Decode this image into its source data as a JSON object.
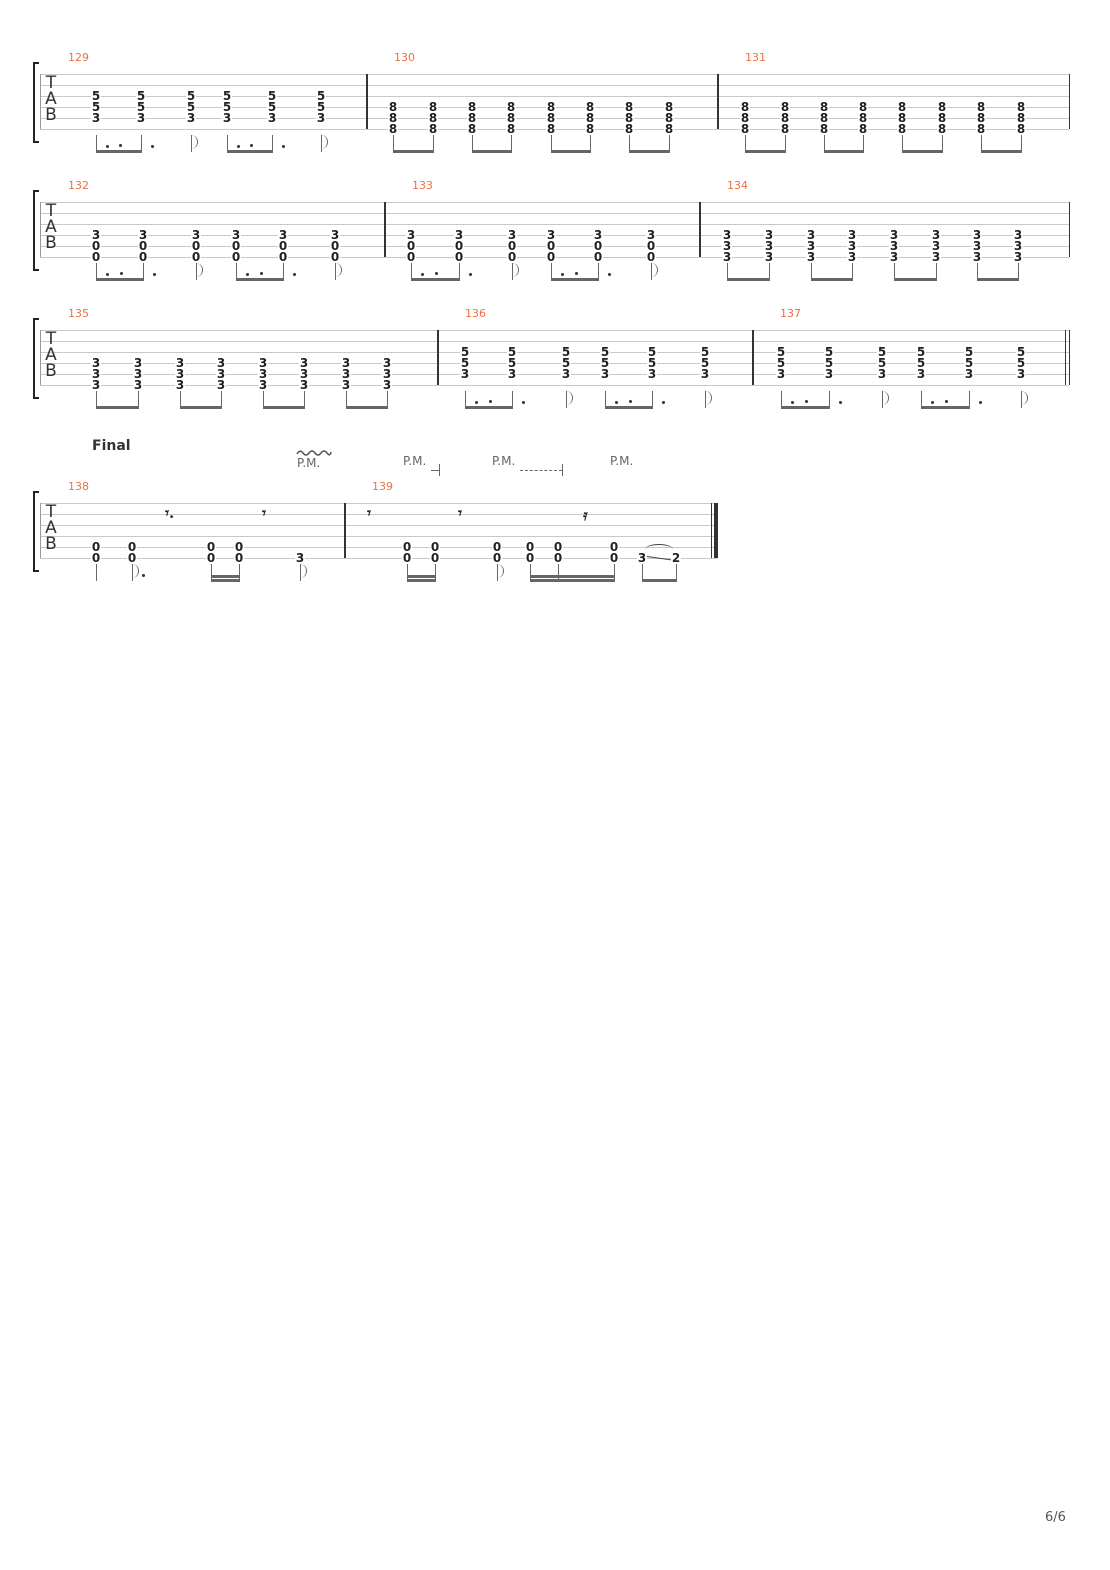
{
  "section_label": "Final",
  "page_number": "6/6",
  "tab_clef": [
    "T",
    "A",
    "B"
  ],
  "annotations": [
    {
      "text": "P.M.",
      "style": "vibrato"
    },
    {
      "text": "P.M.",
      "style": "short-end"
    },
    {
      "text": "P.M.",
      "style": "dashed-end"
    },
    {
      "text": "P.M.",
      "style": "plain"
    }
  ],
  "colors": {
    "measure_number": "#f07040",
    "staff_line": "#c8c8c8",
    "notes": "#222222"
  },
  "systems": [
    {
      "measures": [
        {
          "number": "129",
          "beats": [
            {
              "f": {
                "3": "5",
                "4": "5",
                "5": "3"
              },
              "dur": "8.",
              "beam": "a"
            },
            {
              "f": {
                "3": "5",
                "4": "5",
                "5": "3"
              },
              "dur": "8.",
              "beam": "a"
            },
            {
              "f": {
                "3": "5",
                "4": "5",
                "5": "3"
              },
              "dur": "8"
            },
            {
              "f": {
                "3": "5",
                "4": "5",
                "5": "3"
              },
              "dur": "8.",
              "beam": "b"
            },
            {
              "f": {
                "3": "5",
                "4": "5",
                "5": "3"
              },
              "dur": "8.",
              "beam": "b"
            },
            {
              "f": {
                "3": "5",
                "4": "5",
                "5": "3"
              },
              "dur": "8"
            }
          ]
        },
        {
          "number": "130",
          "beats": [
            {
              "f": {
                "4": "8",
                "5": "8",
                "6": "8"
              },
              "dur": "8",
              "beam": "a"
            },
            {
              "f": {
                "4": "8",
                "5": "8",
                "6": "8"
              },
              "dur": "8",
              "beam": "a"
            },
            {
              "f": {
                "4": "8",
                "5": "8",
                "6": "8"
              },
              "dur": "8",
              "beam": "b"
            },
            {
              "f": {
                "4": "8",
                "5": "8",
                "6": "8"
              },
              "dur": "8",
              "beam": "b"
            },
            {
              "f": {
                "4": "8",
                "5": "8",
                "6": "8"
              },
              "dur": "8",
              "beam": "c"
            },
            {
              "f": {
                "4": "8",
                "5": "8",
                "6": "8"
              },
              "dur": "8",
              "beam": "c"
            },
            {
              "f": {
                "4": "8",
                "5": "8",
                "6": "8"
              },
              "dur": "8",
              "beam": "d"
            },
            {
              "f": {
                "4": "8",
                "5": "8",
                "6": "8"
              },
              "dur": "8",
              "beam": "d"
            }
          ]
        },
        {
          "number": "131",
          "beats": [
            {
              "f": {
                "4": "8",
                "5": "8",
                "6": "8"
              },
              "dur": "8",
              "beam": "a"
            },
            {
              "f": {
                "4": "8",
                "5": "8",
                "6": "8"
              },
              "dur": "8",
              "beam": "a"
            },
            {
              "f": {
                "4": "8",
                "5": "8",
                "6": "8"
              },
              "dur": "8",
              "beam": "b"
            },
            {
              "f": {
                "4": "8",
                "5": "8",
                "6": "8"
              },
              "dur": "8",
              "beam": "b"
            },
            {
              "f": {
                "4": "8",
                "5": "8",
                "6": "8"
              },
              "dur": "8",
              "beam": "c"
            },
            {
              "f": {
                "4": "8",
                "5": "8",
                "6": "8"
              },
              "dur": "8",
              "beam": "c"
            },
            {
              "f": {
                "4": "8",
                "5": "8",
                "6": "8"
              },
              "dur": "8",
              "beam": "d"
            },
            {
              "f": {
                "4": "8",
                "5": "8",
                "6": "8"
              },
              "dur": "8",
              "beam": "d"
            }
          ]
        }
      ]
    },
    {
      "measures": [
        {
          "number": "132",
          "beats": [
            {
              "f": {
                "4": "3",
                "5": "0",
                "6": "0"
              },
              "dur": "8.",
              "beam": "a"
            },
            {
              "f": {
                "4": "3",
                "5": "0",
                "6": "0"
              },
              "dur": "8.",
              "beam": "a"
            },
            {
              "f": {
                "4": "3",
                "5": "0",
                "6": "0"
              },
              "dur": "8"
            },
            {
              "f": {
                "4": "3",
                "5": "0",
                "6": "0"
              },
              "dur": "8.",
              "beam": "b"
            },
            {
              "f": {
                "4": "3",
                "5": "0",
                "6": "0"
              },
              "dur": "8.",
              "beam": "b"
            },
            {
              "f": {
                "4": "3",
                "5": "0",
                "6": "0"
              },
              "dur": "8"
            }
          ]
        },
        {
          "number": "133",
          "beats": [
            {
              "f": {
                "4": "3",
                "5": "0",
                "6": "0"
              },
              "dur": "8.",
              "beam": "a"
            },
            {
              "f": {
                "4": "3",
                "5": "0",
                "6": "0"
              },
              "dur": "8.",
              "beam": "a"
            },
            {
              "f": {
                "4": "3",
                "5": "0",
                "6": "0"
              },
              "dur": "8"
            },
            {
              "f": {
                "4": "3",
                "5": "0",
                "6": "0"
              },
              "dur": "8.",
              "beam": "b"
            },
            {
              "f": {
                "4": "3",
                "5": "0",
                "6": "0"
              },
              "dur": "8.",
              "beam": "b"
            },
            {
              "f": {
                "4": "3",
                "5": "0",
                "6": "0"
              },
              "dur": "8"
            }
          ]
        },
        {
          "number": "134",
          "beats": [
            {
              "f": {
                "4": "3",
                "5": "3",
                "6": "3"
              },
              "dur": "8",
              "beam": "a"
            },
            {
              "f": {
                "4": "3",
                "5": "3",
                "6": "3"
              },
              "dur": "8",
              "beam": "a"
            },
            {
              "f": {
                "4": "3",
                "5": "3",
                "6": "3"
              },
              "dur": "8",
              "beam": "b"
            },
            {
              "f": {
                "4": "3",
                "5": "3",
                "6": "3"
              },
              "dur": "8",
              "beam": "b"
            },
            {
              "f": {
                "4": "3",
                "5": "3",
                "6": "3"
              },
              "dur": "8",
              "beam": "c"
            },
            {
              "f": {
                "4": "3",
                "5": "3",
                "6": "3"
              },
              "dur": "8",
              "beam": "c"
            },
            {
              "f": {
                "4": "3",
                "5": "3",
                "6": "3"
              },
              "dur": "8",
              "beam": "d"
            },
            {
              "f": {
                "4": "3",
                "5": "3",
                "6": "3"
              },
              "dur": "8",
              "beam": "d"
            }
          ]
        }
      ]
    },
    {
      "measures": [
        {
          "number": "135",
          "beats": [
            {
              "f": {
                "4": "3",
                "5": "3",
                "6": "3"
              },
              "dur": "8",
              "beam": "a"
            },
            {
              "f": {
                "4": "3",
                "5": "3",
                "6": "3"
              },
              "dur": "8",
              "beam": "a"
            },
            {
              "f": {
                "4": "3",
                "5": "3",
                "6": "3"
              },
              "dur": "8",
              "beam": "b"
            },
            {
              "f": {
                "4": "3",
                "5": "3",
                "6": "3"
              },
              "dur": "8",
              "beam": "b"
            },
            {
              "f": {
                "4": "3",
                "5": "3",
                "6": "3"
              },
              "dur": "8",
              "beam": "c"
            },
            {
              "f": {
                "4": "3",
                "5": "3",
                "6": "3"
              },
              "dur": "8",
              "beam": "c"
            },
            {
              "f": {
                "4": "3",
                "5": "3",
                "6": "3"
              },
              "dur": "8",
              "beam": "d"
            },
            {
              "f": {
                "4": "3",
                "5": "3",
                "6": "3"
              },
              "dur": "8",
              "beam": "d"
            }
          ]
        },
        {
          "number": "136",
          "beats": [
            {
              "f": {
                "3": "5",
                "4": "5",
                "5": "3"
              },
              "dur": "8.",
              "beam": "a"
            },
            {
              "f": {
                "3": "5",
                "4": "5",
                "5": "3"
              },
              "dur": "8.",
              "beam": "a"
            },
            {
              "f": {
                "3": "5",
                "4": "5",
                "5": "3"
              },
              "dur": "8"
            },
            {
              "f": {
                "3": "5",
                "4": "5",
                "5": "3"
              },
              "dur": "8.",
              "beam": "b"
            },
            {
              "f": {
                "3": "5",
                "4": "5",
                "5": "3"
              },
              "dur": "8.",
              "beam": "b"
            },
            {
              "f": {
                "3": "5",
                "4": "5",
                "5": "3"
              },
              "dur": "8"
            }
          ]
        },
        {
          "number": "137",
          "beats": [
            {
              "f": {
                "3": "5",
                "4": "5",
                "5": "3"
              },
              "dur": "8.",
              "beam": "a"
            },
            {
              "f": {
                "3": "5",
                "4": "5",
                "5": "3"
              },
              "dur": "8.",
              "beam": "a"
            },
            {
              "f": {
                "3": "5",
                "4": "5",
                "5": "3"
              },
              "dur": "8"
            },
            {
              "f": {
                "3": "5",
                "4": "5",
                "5": "3"
              },
              "dur": "8.",
              "beam": "b"
            },
            {
              "f": {
                "3": "5",
                "4": "5",
                "5": "3"
              },
              "dur": "8.",
              "beam": "b"
            },
            {
              "f": {
                "3": "5",
                "4": "5",
                "5": "3"
              },
              "dur": "8"
            }
          ]
        }
      ]
    },
    {
      "measures": [
        {
          "number": "138",
          "beats": [
            {
              "f": {
                "5": "0",
                "6": "0"
              },
              "dur": "4"
            },
            {
              "f": {
                "5": "0",
                "6": "0"
              },
              "dur": "8."
            },
            {
              "rest": true,
              "dur": "8.",
              "glyph": "𝄾."
            },
            {
              "f": {
                "5": "0",
                "6": "0"
              },
              "dur": "16",
              "beam": "a"
            },
            {
              "f": {
                "5": "0",
                "6": "0"
              },
              "dur": "16",
              "beam": "a"
            },
            {
              "rest": true,
              "dur": "8",
              "glyph": "𝄾"
            },
            {
              "f": {
                "6": "3"
              },
              "dur": "8"
            }
          ]
        },
        {
          "number": "139",
          "final": true,
          "beats": [
            {
              "rest": true,
              "dur": "8",
              "glyph": "𝄾"
            },
            {
              "f": {
                "5": "0",
                "6": "0"
              },
              "dur": "16",
              "beam": "a"
            },
            {
              "f": {
                "5": "0",
                "6": "0"
              },
              "dur": "16",
              "beam": "a"
            },
            {
              "rest": true,
              "dur": "8",
              "glyph": "𝄾"
            },
            {
              "f": {
                "5": "0",
                "6": "0"
              },
              "dur": "8"
            },
            {
              "f": {
                "5": "0",
                "6": "0"
              },
              "dur": "16",
              "beam": "b"
            },
            {
              "f": {
                "5": "0",
                "6": "0"
              },
              "dur": "16",
              "beam": "b"
            },
            {
              "rest": true,
              "dur": "16",
              "glyph": "𝄿"
            },
            {
              "f": {
                "5": "0",
                "6": "0"
              },
              "dur": "16",
              "beam": "b"
            },
            {
              "f": {
                "6": "3"
              },
              "dur": "8",
              "beam": "c",
              "slide": true
            },
            {
              "f": {
                "6": "2"
              },
              "dur": "8",
              "beam": "c"
            }
          ]
        }
      ]
    }
  ]
}
